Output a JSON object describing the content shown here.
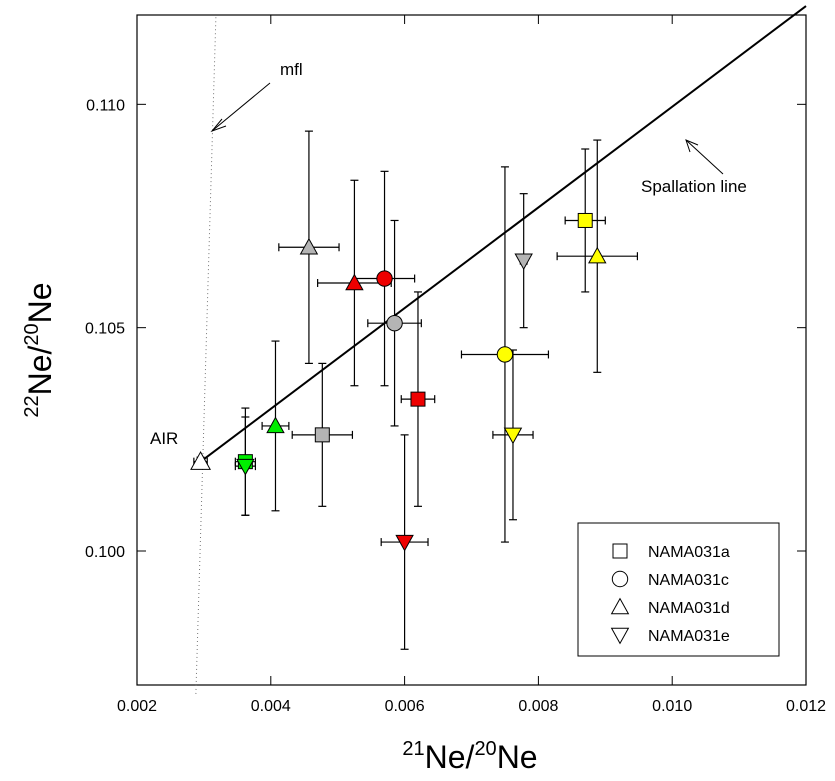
{
  "chart_data": {
    "type": "scatter",
    "xlabel": {
      "sup1": "21",
      "base1": "Ne/",
      "sup2": "20",
      "base2": "Ne"
    },
    "ylabel": {
      "sup1": "22",
      "base1": "Ne/",
      "sup2": "20",
      "base2": "Ne"
    },
    "xlim": [
      0.002,
      0.012
    ],
    "ylim": [
      0.097,
      0.112
    ],
    "xticks": [
      "0.002",
      "0.004",
      "0.006",
      "0.008",
      "0.010",
      "0.012"
    ],
    "yticks": [
      "0.100",
      "0.105",
      "0.110"
    ],
    "grid": false,
    "legend_position": "bottom-right",
    "legend": [
      {
        "label": "NAMA031a",
        "marker": "square"
      },
      {
        "label": "NAMA031c",
        "marker": "circle"
      },
      {
        "label": "NAMA031d",
        "marker": "triangle-up"
      },
      {
        "label": "NAMA031e",
        "marker": "triangle-down"
      }
    ],
    "colors": {
      "green": "#00ee00",
      "gray": "#b4b4b4",
      "red": "#ee0000",
      "yellow": "#ffff00"
    },
    "air": {
      "label": "AIR",
      "x": 0.00295,
      "y": 0.102,
      "xerr": 0.0001,
      "yerr": 0.0001
    },
    "spallation_line": {
      "label": "Spallation line",
      "x0": 0.00295,
      "y0": 0.102,
      "x1": 0.012,
      "y1": 0.1122
    },
    "mfl_line": {
      "label": "mfl",
      "x0": 0.00288,
      "y0": 0.0968,
      "x1": 0.00318,
      "y1": 0.112
    },
    "points": [
      {
        "x": 0.00362,
        "y": 0.102,
        "xerr": 0.00015,
        "yerr": 0.0012,
        "marker": "square",
        "color": "green"
      },
      {
        "x": 0.00362,
        "y": 0.1019,
        "xerr": 0.00015,
        "yerr": 0.0011,
        "marker": "triangle-down",
        "color": "green"
      },
      {
        "x": 0.00407,
        "y": 0.1028,
        "xerr": 0.0002,
        "yerr": 0.0019,
        "marker": "triangle-up",
        "color": "green"
      },
      {
        "x": 0.00477,
        "y": 0.1026,
        "xerr": 0.00045,
        "yerr": 0.0016,
        "marker": "square",
        "color": "gray"
      },
      {
        "x": 0.00457,
        "y": 0.1068,
        "xerr": 0.00045,
        "yerr": 0.0026,
        "marker": "triangle-up",
        "color": "gray"
      },
      {
        "x": 0.00585,
        "y": 0.1051,
        "xerr": 0.0004,
        "yerr": 0.0023,
        "marker": "circle",
        "color": "gray"
      },
      {
        "x": 0.00778,
        "y": 0.1065,
        "xerr": 5e-05,
        "yerr": 0.0015,
        "marker": "triangle-down",
        "color": "gray"
      },
      {
        "x": 0.00525,
        "y": 0.106,
        "xerr": 0.00055,
        "yerr": 0.0023,
        "marker": "triangle-up",
        "color": "red"
      },
      {
        "x": 0.0057,
        "y": 0.1061,
        "xerr": 0.00045,
        "yerr": 0.0024,
        "marker": "circle",
        "color": "red"
      },
      {
        "x": 0.0062,
        "y": 0.1034,
        "xerr": 0.00025,
        "yerr": 0.0024,
        "marker": "square",
        "color": "red"
      },
      {
        "x": 0.006,
        "y": 0.1002,
        "xerr": 0.00035,
        "yerr": 0.0024,
        "marker": "triangle-down",
        "color": "red"
      },
      {
        "x": 0.0075,
        "y": 0.1044,
        "xerr": 0.00065,
        "yerr": 0.0042,
        "marker": "circle",
        "color": "yellow"
      },
      {
        "x": 0.00762,
        "y": 0.1026,
        "xerr": 0.0003,
        "yerr": 0.0019,
        "marker": "triangle-down",
        "color": "yellow"
      },
      {
        "x": 0.0087,
        "y": 0.1074,
        "xerr": 0.0003,
        "yerr": 0.0016,
        "marker": "square",
        "color": "yellow"
      },
      {
        "x": 0.00888,
        "y": 0.1066,
        "xerr": 0.0006,
        "yerr": 0.0026,
        "marker": "triangle-up",
        "color": "yellow"
      }
    ]
  }
}
